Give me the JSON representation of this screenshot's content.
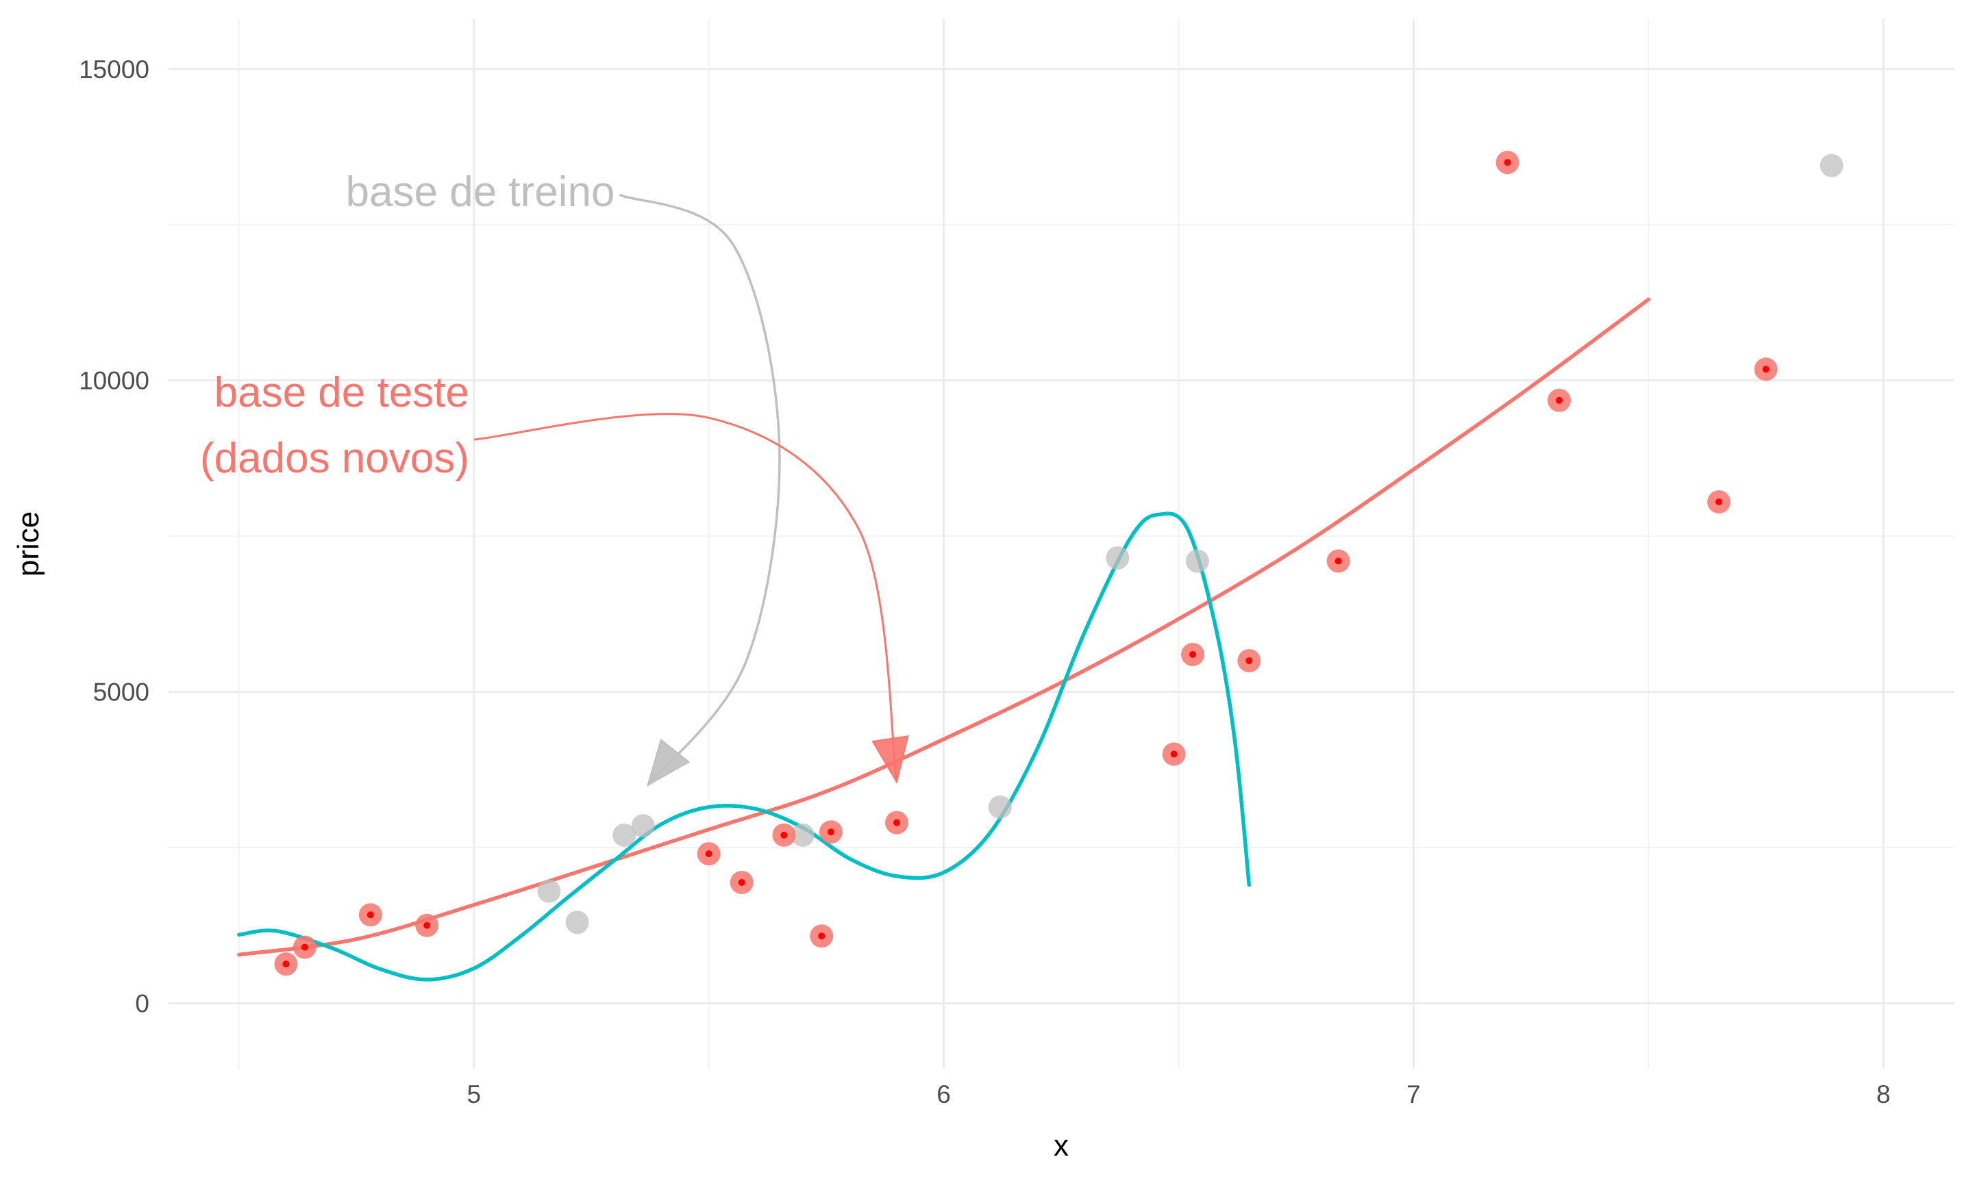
{
  "chart_data": {
    "type": "scatter",
    "title": "",
    "xlabel": "x",
    "ylabel": "price",
    "xlim": [
      4.35,
      8.15
    ],
    "ylim": [
      -1050,
      15800
    ],
    "x_ticks": [
      5,
      6,
      7,
      8
    ],
    "x_tick_labels": [
      "5",
      "6",
      "7",
      "8"
    ],
    "y_ticks": [
      0,
      5000,
      10000,
      15000
    ],
    "y_tick_labels": [
      "0",
      "5000",
      "10000",
      "15000"
    ],
    "grid": true,
    "legend": "none",
    "colors": {
      "train": "#bfbfbf",
      "test": "#f8766d",
      "test_dot": "#ff0000",
      "poly2": "#f8766d",
      "poly_high": "#00bfc4",
      "grid_major": "#ebebeb",
      "grid_minor": "#f2f2f2"
    },
    "series": [
      {
        "role": "train",
        "points": [
          {
            "x": 5.16,
            "y": 1800
          },
          {
            "x": 5.22,
            "y": 1300
          },
          {
            "x": 5.32,
            "y": 2700
          },
          {
            "x": 5.36,
            "y": 2850
          },
          {
            "x": 5.7,
            "y": 2700
          },
          {
            "x": 6.12,
            "y": 3150
          },
          {
            "x": 6.37,
            "y": 7150
          },
          {
            "x": 6.54,
            "y": 7100
          },
          {
            "x": 7.89,
            "y": 13450
          }
        ]
      },
      {
        "role": "test",
        "points": [
          {
            "x": 4.6,
            "y": 630
          },
          {
            "x": 4.64,
            "y": 900
          },
          {
            "x": 4.78,
            "y": 1420
          },
          {
            "x": 4.9,
            "y": 1250
          },
          {
            "x": 5.5,
            "y": 2400
          },
          {
            "x": 5.57,
            "y": 1940
          },
          {
            "x": 5.66,
            "y": 2700
          },
          {
            "x": 5.74,
            "y": 1080
          },
          {
            "x": 5.76,
            "y": 2750
          },
          {
            "x": 5.9,
            "y": 2900
          },
          {
            "x": 6.49,
            "y": 4000
          },
          {
            "x": 6.53,
            "y": 5600
          },
          {
            "x": 6.65,
            "y": 5500
          },
          {
            "x": 6.84,
            "y": 7100
          },
          {
            "x": 7.2,
            "y": 13500
          },
          {
            "x": 7.31,
            "y": 9680
          },
          {
            "x": 7.65,
            "y": 8050
          },
          {
            "x": 7.75,
            "y": 10180
          }
        ]
      },
      {
        "role": "poly2-fit",
        "line": [
          {
            "x": 4.5,
            "y": 780
          },
          {
            "x": 4.75,
            "y": 1030
          },
          {
            "x": 5.0,
            "y": 1580
          },
          {
            "x": 5.25,
            "y": 2180
          },
          {
            "x": 5.5,
            "y": 2790
          },
          {
            "x": 5.75,
            "y": 3400
          },
          {
            "x": 6.0,
            "y": 4240
          },
          {
            "x": 6.25,
            "y": 5150
          },
          {
            "x": 6.5,
            "y": 6170
          },
          {
            "x": 6.75,
            "y": 7290
          },
          {
            "x": 7.0,
            "y": 8570
          },
          {
            "x": 7.25,
            "y": 9900
          },
          {
            "x": 7.5,
            "y": 11300
          }
        ]
      },
      {
        "role": "high-degree-fit",
        "line": [
          {
            "x": 4.5,
            "y": 1100
          },
          {
            "x": 4.58,
            "y": 1160
          },
          {
            "x": 4.7,
            "y": 880
          },
          {
            "x": 4.8,
            "y": 550
          },
          {
            "x": 4.9,
            "y": 380
          },
          {
            "x": 5.0,
            "y": 560
          },
          {
            "x": 5.1,
            "y": 1080
          },
          {
            "x": 5.2,
            "y": 1700
          },
          {
            "x": 5.3,
            "y": 2300
          },
          {
            "x": 5.4,
            "y": 2880
          },
          {
            "x": 5.5,
            "y": 3150
          },
          {
            "x": 5.6,
            "y": 3120
          },
          {
            "x": 5.7,
            "y": 2820
          },
          {
            "x": 5.8,
            "y": 2320
          },
          {
            "x": 5.9,
            "y": 2040
          },
          {
            "x": 6.0,
            "y": 2100
          },
          {
            "x": 6.1,
            "y": 2750
          },
          {
            "x": 6.2,
            "y": 4100
          },
          {
            "x": 6.3,
            "y": 5960
          },
          {
            "x": 6.4,
            "y": 7500
          },
          {
            "x": 6.46,
            "y": 7850
          },
          {
            "x": 6.52,
            "y": 7600
          },
          {
            "x": 6.58,
            "y": 6000
          },
          {
            "x": 6.62,
            "y": 4200
          },
          {
            "x": 6.65,
            "y": 1900
          }
        ]
      }
    ],
    "annotations": [
      {
        "lines": [
          "base de treino"
        ],
        "color": "#bfbfbf",
        "anchor": {
          "x": 5.3,
          "y": 12800
        },
        "arrow_path": [
          {
            "x": 5.31,
            "y": 12980
          },
          {
            "x": 5.55,
            "y": 12200
          },
          {
            "x": 5.65,
            "y": 9000
          },
          {
            "x": 5.58,
            "y": 5500
          },
          {
            "x": 5.37,
            "y": 3500
          }
        ]
      },
      {
        "lines": [
          "base de teste",
          "(dados novos)"
        ],
        "color": "#f8766d",
        "anchor": {
          "x": 4.99,
          "y": 9580
        },
        "arrow_path": [
          {
            "x": 5.0,
            "y": 9050
          },
          {
            "x": 5.5,
            "y": 9400
          },
          {
            "x": 5.82,
            "y": 7600
          },
          {
            "x": 5.9,
            "y": 3550
          }
        ]
      }
    ]
  }
}
